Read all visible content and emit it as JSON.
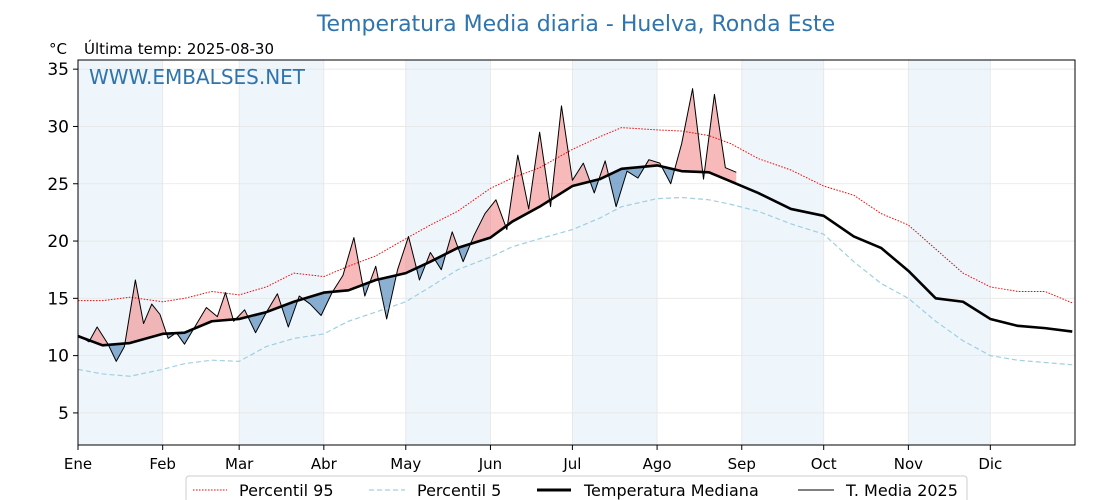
{
  "chart_data": {
    "type": "line",
    "title": "Temperatura Media diaria - Huelva, Ronda Este",
    "unit_label": "°C",
    "last_temp_label": "Última temp: 2025-08-30",
    "watermark": "WWW.EMBALSES.NET",
    "ylim": [
      2.2,
      35.8
    ],
    "xlim": [
      1,
      366
    ],
    "y_ticks": [
      5,
      10,
      15,
      20,
      25,
      30,
      35
    ],
    "months": [
      "Ene",
      "Feb",
      "Mar",
      "Abr",
      "May",
      "Jun",
      "Jul",
      "Ago",
      "Sep",
      "Oct",
      "Nov",
      "Dic"
    ],
    "month_start_day": [
      1,
      32,
      60,
      91,
      121,
      152,
      182,
      213,
      244,
      274,
      305,
      335
    ],
    "shaded_months": [
      "Ene",
      "Mar",
      "May",
      "Jul",
      "Sep",
      "Nov"
    ],
    "grid": true,
    "legend_position": "bottom-center",
    "colors": {
      "p95": "#ff0000",
      "p5": "#9fd0e0",
      "median": "#000000",
      "current": "#000000",
      "above_fill": "#f08080",
      "below_fill": "#4f86b8",
      "title": "#2f74ad",
      "month_band": "#eef5fb"
    },
    "series": [
      {
        "name": "Percentil 95",
        "style": "dotted",
        "x": [
          1,
          10,
          20,
          32,
          40,
          50,
          60,
          70,
          80,
          91,
          100,
          110,
          121,
          130,
          140,
          152,
          160,
          170,
          182,
          192,
          200,
          213,
          222,
          232,
          240,
          250,
          262,
          274,
          285,
          295,
          305,
          315,
          325,
          335,
          345,
          355,
          365
        ],
        "values": [
          14.8,
          14.8,
          15.1,
          14.7,
          15.0,
          15.6,
          15.3,
          16.0,
          17.2,
          16.9,
          17.8,
          18.7,
          20.2,
          21.4,
          22.6,
          24.6,
          25.5,
          26.4,
          28.0,
          29.1,
          29.9,
          29.7,
          29.6,
          29.2,
          28.5,
          27.2,
          26.2,
          24.8,
          24.0,
          22.4,
          21.4,
          19.3,
          17.2,
          16.0,
          15.6,
          15.6,
          14.6
        ]
      },
      {
        "name": "Percentil 5",
        "style": "dashed",
        "x": [
          1,
          10,
          20,
          32,
          40,
          50,
          60,
          70,
          80,
          91,
          100,
          110,
          121,
          130,
          140,
          152,
          160,
          170,
          182,
          192,
          200,
          213,
          222,
          232,
          240,
          250,
          262,
          274,
          285,
          295,
          305,
          315,
          325,
          335,
          345,
          355,
          365
        ],
        "values": [
          8.8,
          8.4,
          8.2,
          8.8,
          9.3,
          9.6,
          9.5,
          10.8,
          11.5,
          11.9,
          13.0,
          13.8,
          14.7,
          16.0,
          17.5,
          18.6,
          19.5,
          20.2,
          21.0,
          22.0,
          23.0,
          23.7,
          23.8,
          23.6,
          23.2,
          22.6,
          21.5,
          20.6,
          18.2,
          16.3,
          15.0,
          13.0,
          11.3,
          10.0,
          9.6,
          9.4,
          9.2
        ]
      },
      {
        "name": "Temperatura Mediana",
        "style": "solid-thick",
        "x": [
          1,
          10,
          20,
          32,
          40,
          50,
          60,
          70,
          80,
          91,
          100,
          110,
          121,
          130,
          140,
          152,
          160,
          170,
          182,
          192,
          200,
          213,
          222,
          232,
          240,
          250,
          262,
          274,
          285,
          295,
          305,
          315,
          325,
          335,
          345,
          355,
          365
        ],
        "values": [
          11.7,
          10.9,
          11.1,
          11.9,
          12.0,
          13.0,
          13.2,
          13.8,
          14.7,
          15.5,
          15.7,
          16.6,
          17.2,
          18.2,
          19.4,
          20.3,
          21.7,
          23.0,
          24.8,
          25.4,
          26.3,
          26.6,
          26.1,
          26.0,
          25.2,
          24.2,
          22.8,
          22.2,
          20.4,
          19.4,
          17.4,
          15.0,
          14.7,
          13.2,
          12.6,
          12.4,
          12.1
        ]
      },
      {
        "name": "T. Media 2025",
        "style": "solid-thin",
        "x": [
          1,
          5,
          8,
          12,
          15,
          18,
          22,
          25,
          28,
          31,
          34,
          37,
          40,
          44,
          48,
          52,
          55,
          58,
          62,
          66,
          70,
          74,
          78,
          82,
          86,
          90,
          94,
          98,
          102,
          106,
          110,
          114,
          118,
          122,
          126,
          130,
          134,
          138,
          142,
          146,
          150,
          154,
          158,
          162,
          166,
          170,
          174,
          178,
          182,
          186,
          190,
          194,
          198,
          202,
          206,
          210,
          214,
          218,
          222,
          226,
          230,
          234,
          238,
          242
        ],
        "values": [
          11.8,
          11.2,
          12.5,
          11.0,
          9.5,
          10.8,
          16.6,
          12.8,
          14.5,
          13.6,
          11.5,
          12.0,
          11.0,
          12.6,
          14.2,
          13.4,
          15.5,
          13.0,
          14.0,
          12.0,
          13.8,
          15.4,
          12.5,
          15.2,
          14.5,
          13.5,
          15.5,
          17.0,
          20.3,
          15.2,
          17.8,
          13.2,
          17.5,
          20.4,
          16.6,
          19.0,
          17.5,
          20.8,
          18.2,
          20.5,
          22.4,
          23.6,
          21.0,
          27.5,
          22.8,
          29.5,
          23.0,
          31.8,
          25.3,
          26.8,
          24.2,
          27.0,
          23.0,
          26.1,
          25.5,
          27.1,
          26.8,
          25.0,
          28.5,
          33.3,
          25.4,
          32.8,
          26.4,
          26.0
        ]
      }
    ]
  }
}
